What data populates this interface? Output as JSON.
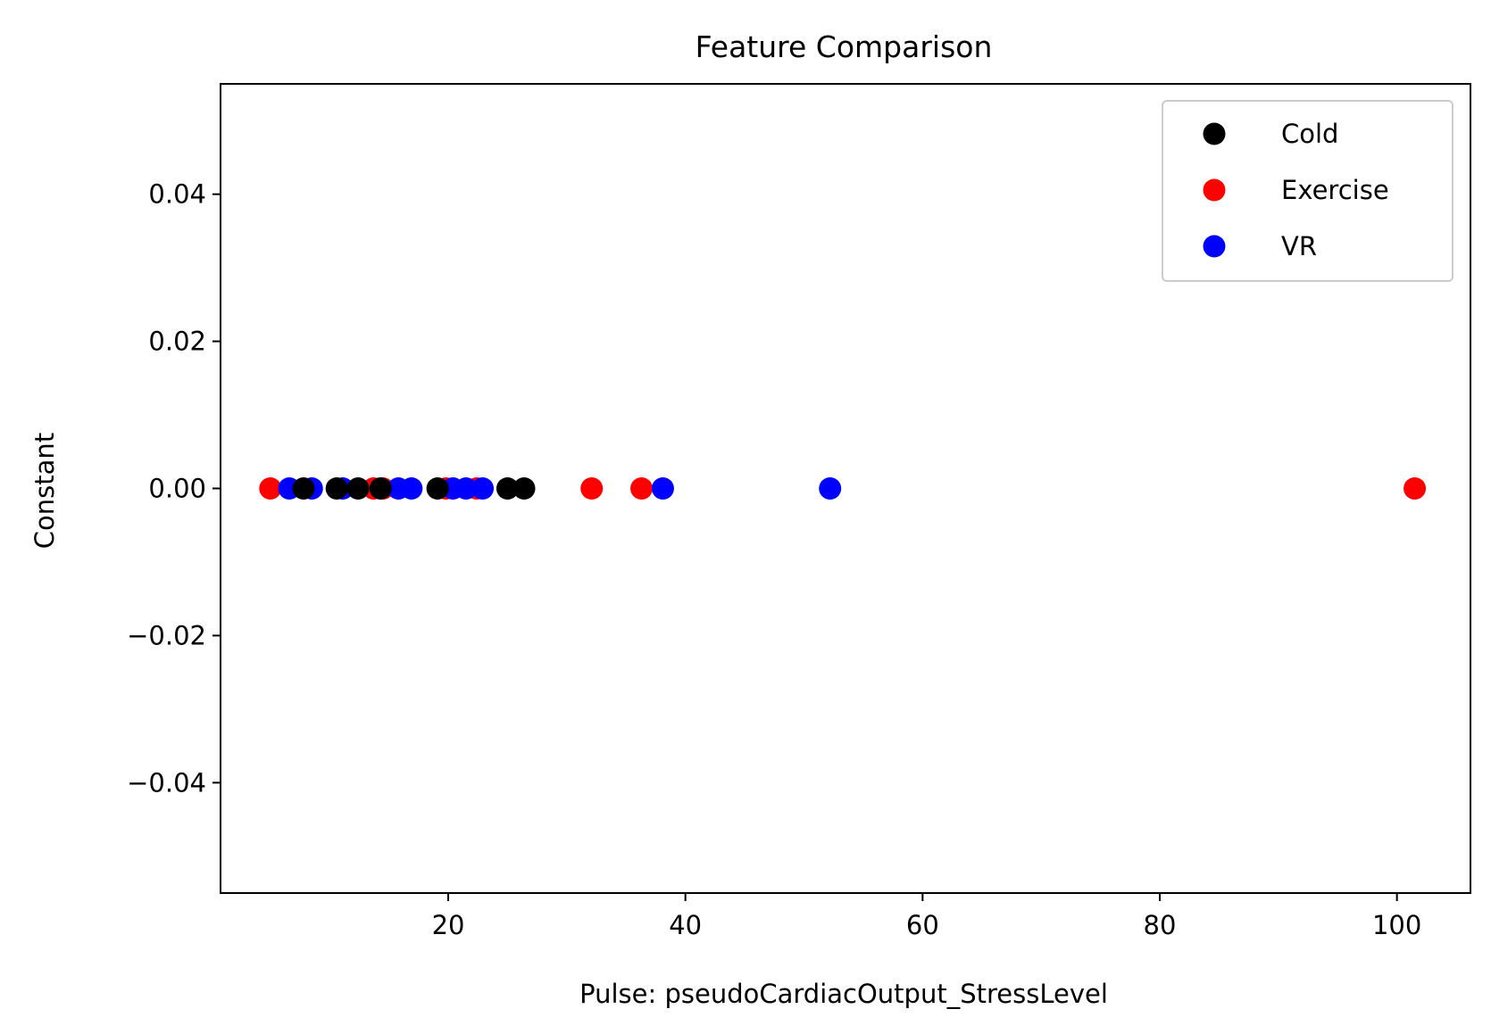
{
  "chart_data": {
    "type": "scatter",
    "title": "Feature Comparison",
    "xlabel": "Pulse: pseudoCardiacOutput_StressLevel",
    "ylabel": "Constant",
    "xlim": [
      0.8,
      106.2
    ],
    "ylim": [
      -0.055,
      0.055
    ],
    "x_ticks": [
      20,
      40,
      60,
      80,
      100
    ],
    "x_tick_labels": [
      "20",
      "40",
      "60",
      "80",
      "100"
    ],
    "y_ticks": [
      0.04,
      0.02,
      0.0,
      -0.02,
      -0.04
    ],
    "y_tick_labels": [
      "0.04",
      "0.02",
      "0.00",
      "−0.02",
      "−0.04"
    ],
    "grid": false,
    "legend_position": "top-right",
    "series": [
      {
        "name": "Cold",
        "color": "#000000",
        "x": [
          7.8,
          10.6,
          12.4,
          14.3,
          19.1,
          25.0,
          26.4
        ],
        "y": [
          0,
          0,
          0,
          0,
          0,
          0,
          0
        ]
      },
      {
        "name": "Exercise",
        "color": "#ff0000",
        "x": [
          5.0,
          13.7,
          14.5,
          19.8,
          22.4,
          32.1,
          36.3,
          101.5
        ],
        "y": [
          0,
          0,
          0,
          0,
          0,
          0,
          0,
          0
        ]
      },
      {
        "name": "VR",
        "color": "#0000ff",
        "x": [
          6.6,
          8.5,
          11.1,
          15.8,
          16.9,
          20.4,
          21.5,
          22.9,
          38.1,
          52.2
        ],
        "y": [
          0,
          0,
          0,
          0,
          0,
          0,
          0,
          0,
          0,
          0
        ]
      }
    ]
  }
}
